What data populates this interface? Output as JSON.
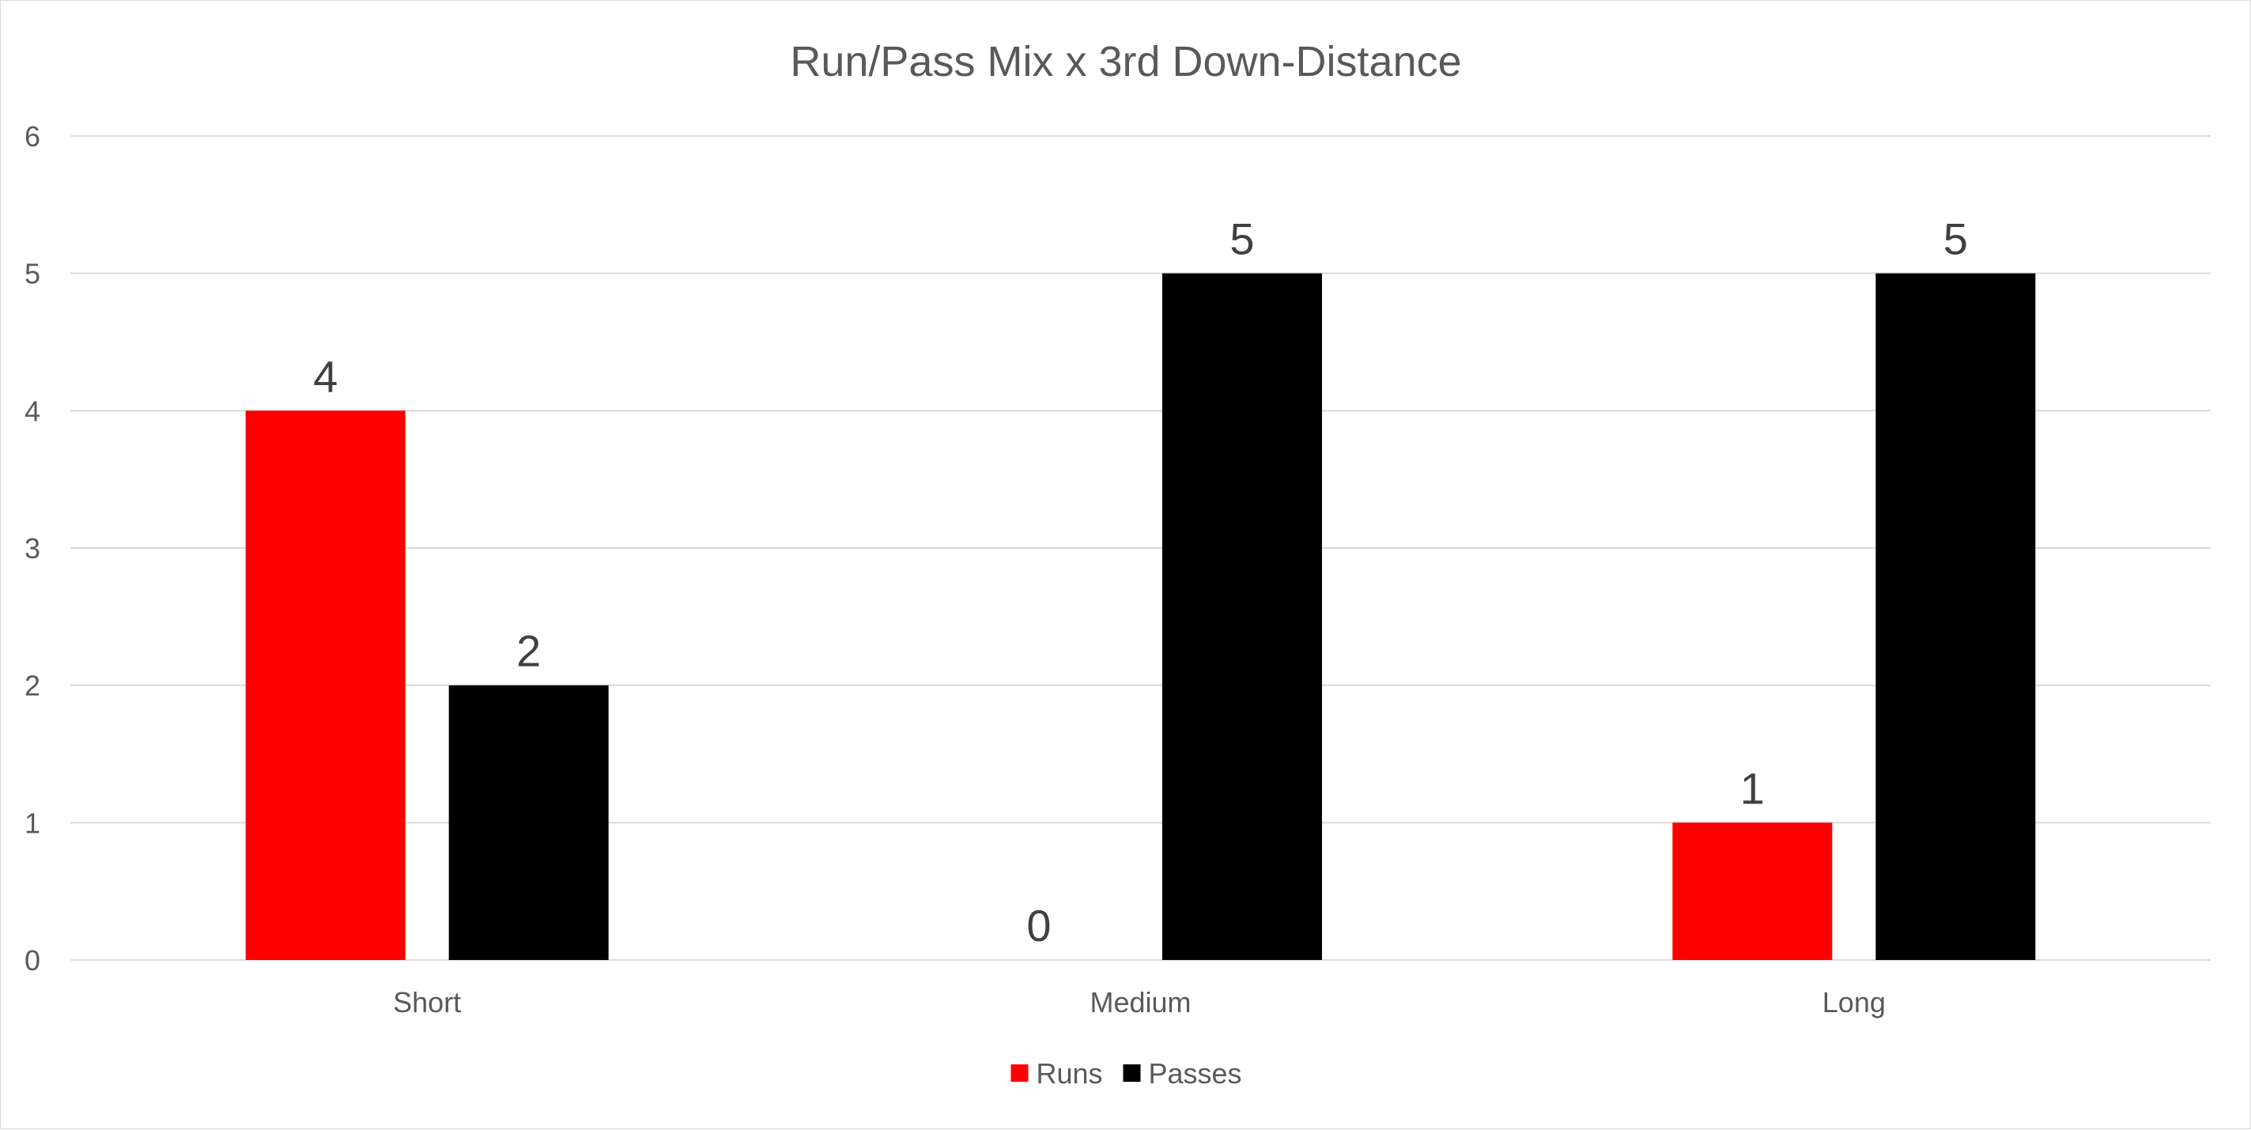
{
  "chart_data": {
    "type": "bar",
    "title": "Run/Pass Mix x 3rd Down-Distance",
    "categories": [
      "Short",
      "Medium",
      "Long"
    ],
    "series": [
      {
        "name": "Runs",
        "values": [
          4,
          0,
          1
        ],
        "color": "#ff0000"
      },
      {
        "name": "Passes",
        "values": [
          2,
          5,
          5
        ],
        "color": "#000000"
      }
    ],
    "ylim": [
      0,
      6
    ],
    "yticks": [
      0,
      1,
      2,
      3,
      4,
      5,
      6
    ],
    "grid": true,
    "data_labels": true,
    "legend_position": "bottom"
  }
}
